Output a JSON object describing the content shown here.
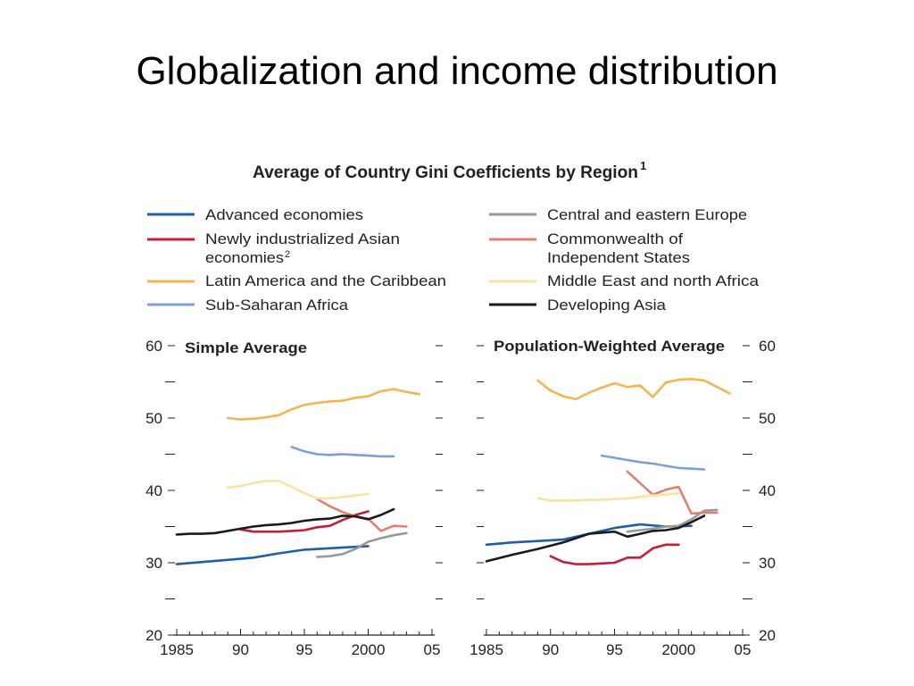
{
  "page": {
    "title": "Globalization and income distribution"
  },
  "chart_data": {
    "type": "line",
    "title": "Average of Country Gini Coefficients by Region",
    "title_sup": "1",
    "legend": {
      "left": [
        {
          "name": "Advanced economies",
          "color": "#1f5fa8"
        },
        {
          "name": "Newly industrialized Asian economies",
          "line1": "Newly industrialized Asian",
          "line2": "economies",
          "sup": "2",
          "color": "#c41e3a"
        },
        {
          "name": "Latin America and the Caribbean",
          "color": "#f5b553"
        },
        {
          "name": "Sub-Saharan Africa",
          "color": "#7f9fd8"
        }
      ],
      "right": [
        {
          "name": "Central and eastern Europe",
          "color": "#999999"
        },
        {
          "name": "Commonwealth of Independent States",
          "line1": "Commonwealth of",
          "line2": "Independent States",
          "color": "#e08070"
        },
        {
          "name": "Middle East and north Africa",
          "color": "#f8e3a0"
        },
        {
          "name": "Developing Asia",
          "color": "#1a1a1a"
        }
      ]
    },
    "panels": [
      {
        "id": "left",
        "subtitle": "Simple Average",
        "xlim": [
          1985,
          2005
        ],
        "ylim": [
          20,
          60
        ],
        "x_ticks": [
          "1985",
          "90",
          "95",
          "2000",
          "05"
        ],
        "y_ticks": [
          "60",
          "50",
          "40",
          "30",
          "20"
        ],
        "series": [
          {
            "name": "Advanced economies",
            "color": "#1f5fa8",
            "x": [
              1985,
              1987,
              1989,
              1991,
              1993,
              1995,
              1997,
              1999,
              2000
            ],
            "y": [
              29.8,
              30.1,
              30.4,
              30.7,
              31.3,
              31.8,
              32.0,
              32.2,
              32.3
            ]
          },
          {
            "name": "Newly industrialized Asian economies",
            "color": "#c41e3a",
            "x": [
              1990,
              1991,
              1992,
              1993,
              1994,
              1995,
              1996,
              1997,
              1998,
              1999,
              2000
            ],
            "y": [
              34.6,
              34.3,
              34.3,
              34.3,
              34.4,
              34.5,
              34.9,
              35.1,
              35.9,
              36.6,
              37.1
            ]
          },
          {
            "name": "Latin America and the Caribbean",
            "color": "#f5b553",
            "x": [
              1989,
              1990,
              1991,
              1992,
              1993,
              1994,
              1995,
              1996,
              1997,
              1998,
              1999,
              2000,
              2001,
              2002,
              2003,
              2004
            ],
            "y": [
              50.0,
              49.8,
              49.9,
              50.1,
              50.4,
              51.2,
              51.8,
              52.1,
              52.3,
              52.4,
              52.8,
              53.0,
              53.7,
              54.0,
              53.6,
              53.3
            ]
          },
          {
            "name": "Sub-Saharan Africa",
            "color": "#7f9fd8",
            "x": [
              1994,
              1995,
              1996,
              1997,
              1998,
              1999,
              2000,
              2001,
              2002
            ],
            "y": [
              46.0,
              45.4,
              45.0,
              44.9,
              45.0,
              44.9,
              44.8,
              44.7,
              44.7
            ]
          },
          {
            "name": "Central and eastern Europe",
            "color": "#999999",
            "x": [
              1996,
              1997,
              1998,
              1999,
              2000,
              2001,
              2002,
              2003
            ],
            "y": [
              30.8,
              30.9,
              31.2,
              31.9,
              32.9,
              33.4,
              33.8,
              34.1
            ]
          },
          {
            "name": "Commonwealth of Independent States",
            "color": "#e08070",
            "x": [
              1996,
              1997,
              1998,
              1999,
              2000,
              2001,
              2002,
              2003
            ],
            "y": [
              38.8,
              37.8,
              37.0,
              36.4,
              36.1,
              34.4,
              35.1,
              35.0
            ]
          },
          {
            "name": "Middle East and north Africa",
            "color": "#f8e3a0",
            "x": [
              1989,
              1990,
              1991,
              1992,
              1993,
              1994,
              1995,
              1996,
              1997,
              1998,
              1999,
              2000
            ],
            "y": [
              40.4,
              40.6,
              41.0,
              41.3,
              41.3,
              40.5,
              39.6,
              38.9,
              38.9,
              39.1,
              39.3,
              39.5
            ]
          },
          {
            "name": "Developing Asia",
            "color": "#1a1a1a",
            "x": [
              1985,
              1986,
              1987,
              1988,
              1989,
              1990,
              1991,
              1992,
              1993,
              1994,
              1995,
              1996,
              1997,
              1998,
              1999,
              2000,
              2001,
              2002
            ],
            "y": [
              33.9,
              34.0,
              34.0,
              34.1,
              34.4,
              34.7,
              35.0,
              35.2,
              35.3,
              35.5,
              35.8,
              36.0,
              36.1,
              36.5,
              36.4,
              36.0,
              36.6,
              37.4
            ]
          }
        ]
      },
      {
        "id": "right",
        "subtitle": "Population-Weighted Average",
        "xlim": [
          1985,
          2005
        ],
        "ylim": [
          20,
          60
        ],
        "x_ticks": [
          "1985",
          "90",
          "95",
          "2000",
          "05"
        ],
        "y_ticks": [
          "60",
          "50",
          "40",
          "30",
          "20"
        ],
        "series": [
          {
            "name": "Advanced economies",
            "color": "#1f5fa8",
            "x": [
              1985,
              1987,
              1989,
              1991,
              1993,
              1995,
              1997,
              1999,
              2001
            ],
            "y": [
              32.5,
              32.8,
              33.0,
              33.2,
              34.0,
              34.8,
              35.3,
              35.0,
              35.1
            ]
          },
          {
            "name": "Newly industrialized Asian economies",
            "color": "#c41e3a",
            "x": [
              1990,
              1991,
              1992,
              1993,
              1994,
              1995,
              1996,
              1997,
              1998,
              1999,
              2000
            ],
            "y": [
              30.9,
              30.1,
              29.8,
              29.8,
              29.9,
              30.0,
              30.7,
              30.7,
              32.0,
              32.5,
              32.5
            ]
          },
          {
            "name": "Latin America and the Caribbean",
            "color": "#f5b553",
            "x": [
              1989,
              1990,
              1991,
              1992,
              1993,
              1994,
              1995,
              1996,
              1997,
              1998,
              1999,
              2000,
              2001,
              2002,
              2003,
              2004
            ],
            "y": [
              55.2,
              53.8,
              53.0,
              52.6,
              53.5,
              54.2,
              54.8,
              54.3,
              54.5,
              52.9,
              54.9,
              55.3,
              55.4,
              55.2,
              54.3,
              53.4
            ]
          },
          {
            "name": "Sub-Saharan Africa",
            "color": "#7f9fd8",
            "x": [
              1994,
              1995,
              1996,
              1997,
              1998,
              1999,
              2000,
              2001,
              2002
            ],
            "y": [
              44.8,
              44.5,
              44.2,
              43.9,
              43.7,
              43.4,
              43.1,
              43.0,
              42.9
            ]
          },
          {
            "name": "Central and eastern Europe",
            "color": "#999999",
            "x": [
              1996,
              1997,
              1998,
              1999,
              2000,
              2001,
              2002,
              2003
            ],
            "y": [
              34.3,
              34.5,
              34.7,
              35.0,
              35.1,
              36.0,
              37.2,
              37.3
            ]
          },
          {
            "name": "Commonwealth of Independent States",
            "color": "#e08070",
            "x": [
              1996,
              1997,
              1998,
              1999,
              2000,
              2001,
              2002,
              2003
            ],
            "y": [
              42.6,
              41.0,
              39.4,
              40.1,
              40.5,
              36.8,
              36.9,
              36.9
            ]
          },
          {
            "name": "Middle East and north Africa",
            "color": "#f8e3a0",
            "x": [
              1989,
              1990,
              1991,
              1992,
              1993,
              1994,
              1995,
              1996,
              1997,
              1998,
              1999,
              2000
            ],
            "y": [
              38.9,
              38.6,
              38.6,
              38.6,
              38.7,
              38.7,
              38.8,
              38.9,
              39.1,
              39.3,
              39.4,
              39.6
            ]
          },
          {
            "name": "Developing Asia",
            "color": "#1a1a1a",
            "x": [
              1985,
              1987,
              1989,
              1991,
              1993,
              1995,
              1996,
              1997,
              1998,
              1999,
              2000,
              2001,
              2002
            ],
            "y": [
              30.2,
              31.1,
              31.9,
              32.8,
              34.0,
              34.3,
              33.6,
              34.0,
              34.4,
              34.5,
              34.8,
              35.6,
              36.5
            ]
          }
        ]
      }
    ]
  }
}
